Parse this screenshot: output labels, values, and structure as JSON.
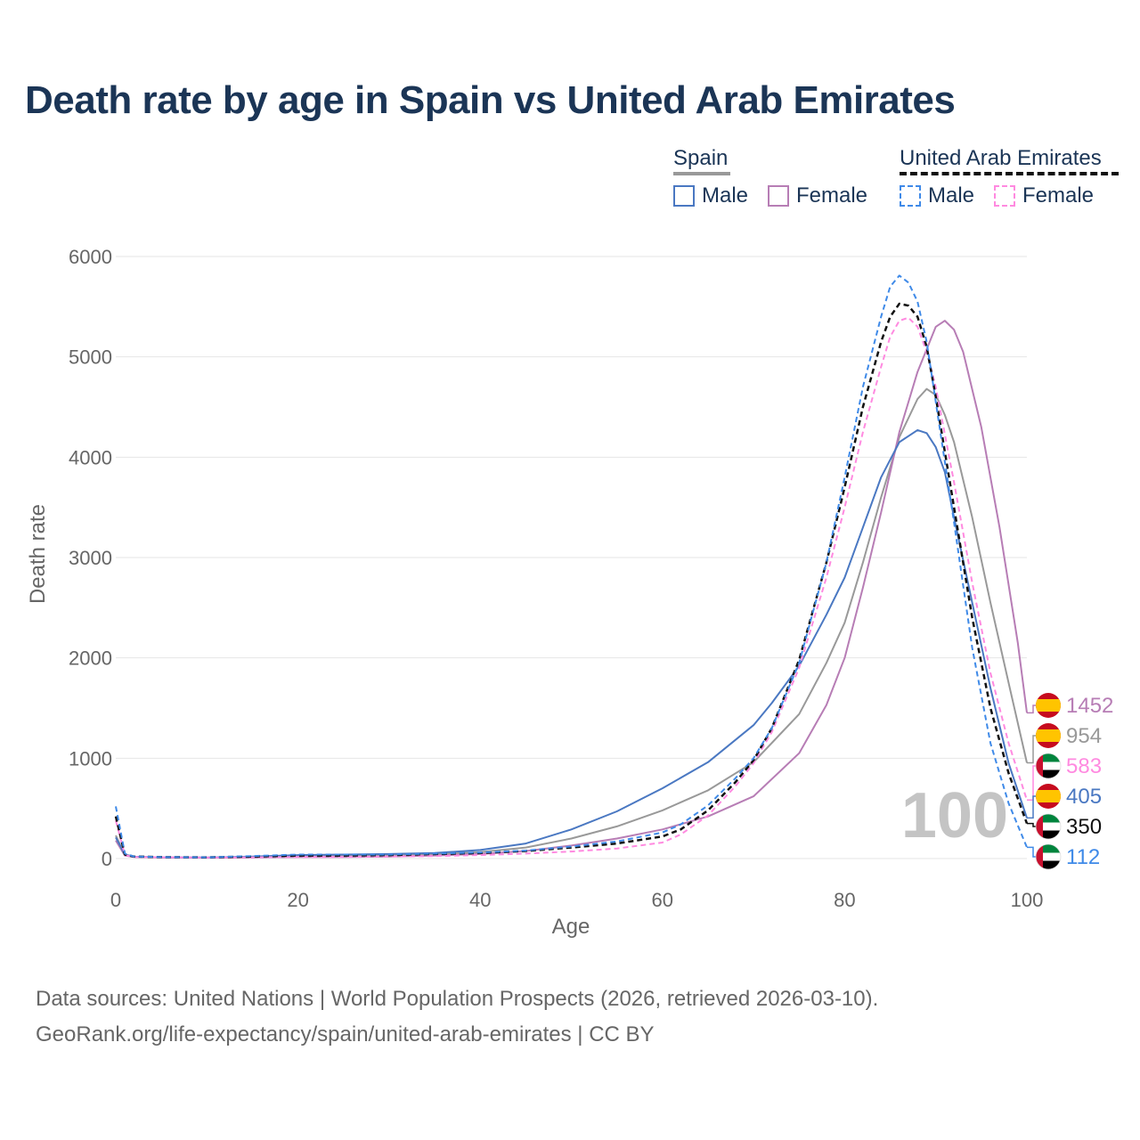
{
  "colors": {
    "spain_male": "#4a78c2",
    "spain_female": "#b77db5",
    "spain_total": "#999999",
    "uae_male": "#3f8ae8",
    "uae_female": "#ff8ae0",
    "uae_total": "#111111",
    "title": "#1b3556"
  },
  "legend": {
    "spain": {
      "title": "Spain",
      "male": "Male",
      "female": "Female"
    },
    "uae": {
      "title": "United Arab Emirates",
      "male": "Male",
      "female": "Female"
    }
  },
  "end_labels": [
    {
      "value": "1452",
      "country": "spain",
      "series": "spain_female"
    },
    {
      "value": "954",
      "country": "spain",
      "series": "spain_total"
    },
    {
      "value": "583",
      "country": "uae",
      "series": "uae_female"
    },
    {
      "value": "405",
      "country": "spain",
      "series": "spain_male"
    },
    {
      "value": "350",
      "country": "uae",
      "series": "uae_total"
    },
    {
      "value": "112",
      "country": "uae",
      "series": "uae_male"
    }
  ],
  "footer": {
    "line1": "Data sources: United Nations | World Population Prospects (2026, retrieved 2026-03-10).",
    "line2": "GeoRank.org/life-expectancy/spain/united-arab-emirates | CC BY"
  },
  "chart_data": {
    "type": "line",
    "title": "Death rate by age in Spain vs United Arab Emirates",
    "xlabel": "Age",
    "ylabel": "Death rate",
    "xlim": [
      0,
      100
    ],
    "ylim": [
      0,
      6000
    ],
    "xticks": [
      0,
      20,
      40,
      60,
      80,
      100
    ],
    "yticks": [
      0,
      1000,
      2000,
      3000,
      4000,
      5000,
      6000
    ],
    "grid": true,
    "watermark": "100",
    "series": [
      {
        "key": "spain_total",
        "name": "Spain",
        "style": "solid",
        "points": [
          [
            0,
            230
          ],
          [
            1,
            40
          ],
          [
            2,
            18
          ],
          [
            5,
            12
          ],
          [
            10,
            10
          ],
          [
            15,
            15
          ],
          [
            20,
            25
          ],
          [
            25,
            25
          ],
          [
            30,
            30
          ],
          [
            35,
            40
          ],
          [
            40,
            65
          ],
          [
            45,
            110
          ],
          [
            50,
            200
          ],
          [
            55,
            320
          ],
          [
            60,
            480
          ],
          [
            65,
            680
          ],
          [
            70,
            960
          ],
          [
            75,
            1440
          ],
          [
            78,
            1950
          ],
          [
            80,
            2350
          ],
          [
            82,
            2950
          ],
          [
            84,
            3600
          ],
          [
            86,
            4200
          ],
          [
            88,
            4580
          ],
          [
            89,
            4680
          ],
          [
            90,
            4620
          ],
          [
            91,
            4420
          ],
          [
            92,
            4150
          ],
          [
            94,
            3400
          ],
          [
            96,
            2550
          ],
          [
            98,
            1750
          ],
          [
            100,
            954
          ]
        ]
      },
      {
        "key": "spain_male",
        "name": "Male",
        "style": "solid",
        "points": [
          [
            0,
            210
          ],
          [
            1,
            40
          ],
          [
            2,
            18
          ],
          [
            5,
            12
          ],
          [
            10,
            10
          ],
          [
            15,
            20
          ],
          [
            20,
            35
          ],
          [
            25,
            40
          ],
          [
            30,
            45
          ],
          [
            35,
            55
          ],
          [
            40,
            85
          ],
          [
            45,
            150
          ],
          [
            50,
            290
          ],
          [
            55,
            470
          ],
          [
            60,
            700
          ],
          [
            65,
            960
          ],
          [
            70,
            1330
          ],
          [
            72,
            1550
          ],
          [
            75,
            1920
          ],
          [
            78,
            2430
          ],
          [
            80,
            2800
          ],
          [
            82,
            3300
          ],
          [
            84,
            3800
          ],
          [
            86,
            4150
          ],
          [
            88,
            4270
          ],
          [
            89,
            4240
          ],
          [
            90,
            4100
          ],
          [
            91,
            3850
          ],
          [
            92,
            3400
          ],
          [
            94,
            2550
          ],
          [
            96,
            1700
          ],
          [
            98,
            950
          ],
          [
            100,
            405
          ]
        ]
      },
      {
        "key": "spain_female",
        "name": "Female",
        "style": "solid",
        "points": [
          [
            0,
            180
          ],
          [
            1,
            30
          ],
          [
            2,
            15
          ],
          [
            5,
            10
          ],
          [
            10,
            8
          ],
          [
            15,
            10
          ],
          [
            20,
            15
          ],
          [
            25,
            15
          ],
          [
            30,
            20
          ],
          [
            35,
            30
          ],
          [
            40,
            45
          ],
          [
            45,
            75
          ],
          [
            50,
            130
          ],
          [
            55,
            200
          ],
          [
            60,
            290
          ],
          [
            65,
            420
          ],
          [
            70,
            620
          ],
          [
            75,
            1050
          ],
          [
            78,
            1530
          ],
          [
            80,
            2000
          ],
          [
            82,
            2700
          ],
          [
            84,
            3450
          ],
          [
            86,
            4250
          ],
          [
            88,
            4850
          ],
          [
            90,
            5300
          ],
          [
            91,
            5360
          ],
          [
            92,
            5270
          ],
          [
            93,
            5050
          ],
          [
            95,
            4300
          ],
          [
            97,
            3300
          ],
          [
            99,
            2150
          ],
          [
            100,
            1452
          ]
        ]
      },
      {
        "key": "uae_total",
        "name": "United Arab Emirates",
        "style": "dashed",
        "points": [
          [
            0,
            420
          ],
          [
            1,
            40
          ],
          [
            2,
            20
          ],
          [
            5,
            15
          ],
          [
            10,
            12
          ],
          [
            15,
            20
          ],
          [
            20,
            30
          ],
          [
            25,
            30
          ],
          [
            30,
            35
          ],
          [
            35,
            45
          ],
          [
            40,
            55
          ],
          [
            45,
            75
          ],
          [
            50,
            110
          ],
          [
            55,
            150
          ],
          [
            60,
            220
          ],
          [
            62,
            290
          ],
          [
            65,
            480
          ],
          [
            68,
            760
          ],
          [
            70,
            980
          ],
          [
            72,
            1300
          ],
          [
            75,
            1980
          ],
          [
            78,
            2950
          ],
          [
            80,
            3700
          ],
          [
            82,
            4500
          ],
          [
            84,
            5150
          ],
          [
            85,
            5400
          ],
          [
            86,
            5530
          ],
          [
            87,
            5510
          ],
          [
            88,
            5400
          ],
          [
            89,
            5100
          ],
          [
            90,
            4600
          ],
          [
            92,
            3500
          ],
          [
            94,
            2400
          ],
          [
            96,
            1500
          ],
          [
            98,
            850
          ],
          [
            100,
            350
          ]
        ]
      },
      {
        "key": "uae_male",
        "name": "Male",
        "style": "dashed",
        "points": [
          [
            0,
            520
          ],
          [
            1,
            50
          ],
          [
            2,
            20
          ],
          [
            5,
            15
          ],
          [
            10,
            12
          ],
          [
            15,
            25
          ],
          [
            20,
            40
          ],
          [
            25,
            40
          ],
          [
            30,
            40
          ],
          [
            35,
            50
          ],
          [
            40,
            60
          ],
          [
            45,
            80
          ],
          [
            50,
            120
          ],
          [
            55,
            170
          ],
          [
            60,
            260
          ],
          [
            62,
            340
          ],
          [
            65,
            530
          ],
          [
            68,
            800
          ],
          [
            70,
            1000
          ],
          [
            72,
            1300
          ],
          [
            75,
            1950
          ],
          [
            78,
            2950
          ],
          [
            80,
            3800
          ],
          [
            82,
            4700
          ],
          [
            84,
            5400
          ],
          [
            85,
            5700
          ],
          [
            86,
            5810
          ],
          [
            87,
            5740
          ],
          [
            88,
            5550
          ],
          [
            89,
            5150
          ],
          [
            90,
            4550
          ],
          [
            92,
            3350
          ],
          [
            94,
            2100
          ],
          [
            96,
            1150
          ],
          [
            98,
            550
          ],
          [
            100,
            112
          ]
        ]
      },
      {
        "key": "uae_female",
        "name": "Female",
        "style": "dashed",
        "points": [
          [
            0,
            380
          ],
          [
            1,
            35
          ],
          [
            2,
            15
          ],
          [
            5,
            12
          ],
          [
            10,
            10
          ],
          [
            15,
            12
          ],
          [
            20,
            15
          ],
          [
            25,
            15
          ],
          [
            30,
            20
          ],
          [
            35,
            25
          ],
          [
            40,
            35
          ],
          [
            45,
            50
          ],
          [
            50,
            70
          ],
          [
            55,
            100
          ],
          [
            60,
            160
          ],
          [
            62,
            240
          ],
          [
            65,
            430
          ],
          [
            68,
            720
          ],
          [
            70,
            950
          ],
          [
            72,
            1260
          ],
          [
            75,
            1900
          ],
          [
            78,
            2800
          ],
          [
            80,
            3500
          ],
          [
            82,
            4250
          ],
          [
            84,
            4900
          ],
          [
            85,
            5200
          ],
          [
            86,
            5360
          ],
          [
            87,
            5390
          ],
          [
            88,
            5300
          ],
          [
            89,
            5050
          ],
          [
            90,
            4700
          ],
          [
            92,
            3750
          ],
          [
            94,
            2750
          ],
          [
            96,
            1850
          ],
          [
            98,
            1150
          ],
          [
            100,
            583
          ]
        ]
      }
    ]
  }
}
